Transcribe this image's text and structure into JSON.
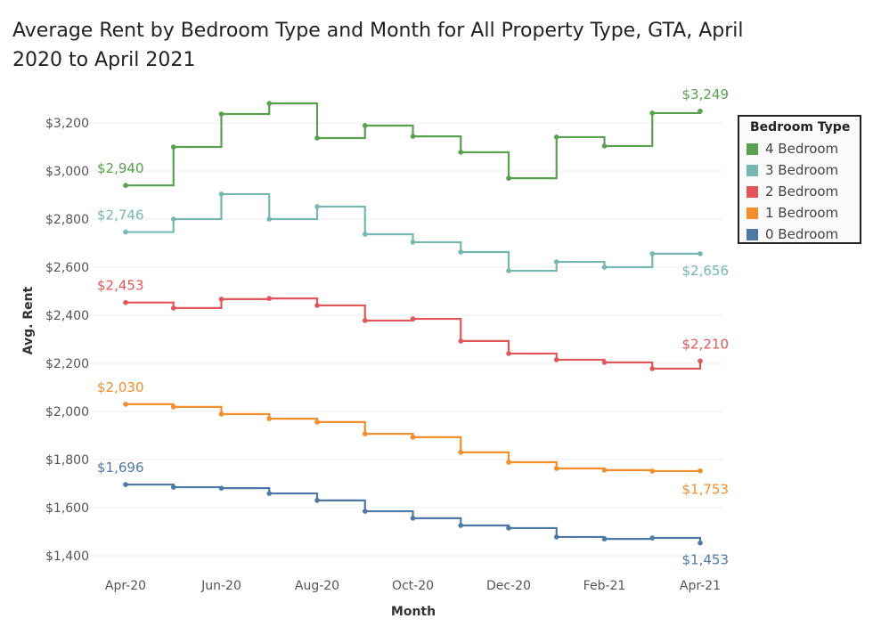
{
  "chart_data": {
    "type": "line",
    "subtype": "step",
    "title": "Average Rent by Bedroom Type and Month for All Property Type, GTA, April 2020 to April 2021",
    "xlabel": "Month",
    "ylabel": "Avg. Rent",
    "x": [
      "Apr-20",
      "May-20",
      "Jun-20",
      "Jul-20",
      "Aug-20",
      "Sep-20",
      "Oct-20",
      "Nov-20",
      "Dec-20",
      "Jan-21",
      "Feb-21",
      "Mar-21",
      "Apr-21"
    ],
    "x_tick_labels": [
      "Apr-20",
      "Jun-20",
      "Aug-20",
      "Oct-20",
      "Dec-20",
      "Feb-21",
      "Apr-21"
    ],
    "y_ticks": [
      1400,
      1600,
      1800,
      2000,
      2200,
      2400,
      2600,
      2800,
      3000,
      3200
    ],
    "y_tick_labels": [
      "$1,400",
      "$1,600",
      "$1,800",
      "$2,000",
      "$2,200",
      "$2,400",
      "$2,600",
      "$2,800",
      "$3,000",
      "$3,200"
    ],
    "ylim": [
      1380,
      3330
    ],
    "grid": "horizontal",
    "legend": {
      "title": "Bedroom Type",
      "placement": "right"
    },
    "series": [
      {
        "name": "4 Bedroom",
        "color": "#59a14f",
        "values": [
          2940,
          3100,
          3237,
          3281,
          3137,
          3189,
          3144,
          3078,
          2970,
          3141,
          3104,
          3241,
          3249
        ],
        "first_label": "$2,940",
        "last_label": "$3,249"
      },
      {
        "name": "3 Bedroom",
        "color": "#76b7b2",
        "values": [
          2746,
          2800,
          2904,
          2800,
          2852,
          2737,
          2704,
          2663,
          2585,
          2622,
          2600,
          2656,
          2656
        ],
        "first_label": "$2,746",
        "last_label": "$2,656"
      },
      {
        "name": "2 Bedroom",
        "color": "#e15759",
        "values": [
          2453,
          2430,
          2467,
          2470,
          2441,
          2378,
          2385,
          2293,
          2241,
          2215,
          2204,
          2178,
          2210
        ],
        "first_label": "$2,453",
        "last_label": "$2,210"
      },
      {
        "name": "1 Bedroom",
        "color": "#f28e2b",
        "values": [
          2030,
          2019,
          1989,
          1970,
          1956,
          1907,
          1893,
          1830,
          1789,
          1763,
          1756,
          1752,
          1753
        ],
        "first_label": "$2,030",
        "last_label": "$1,753"
      },
      {
        "name": "0 Bedroom",
        "color": "#4e79a7",
        "values": [
          1696,
          1685,
          1681,
          1659,
          1630,
          1585,
          1556,
          1526,
          1515,
          1478,
          1470,
          1474,
          1453
        ],
        "first_label": "$1,696",
        "last_label": "$1,453"
      }
    ]
  }
}
